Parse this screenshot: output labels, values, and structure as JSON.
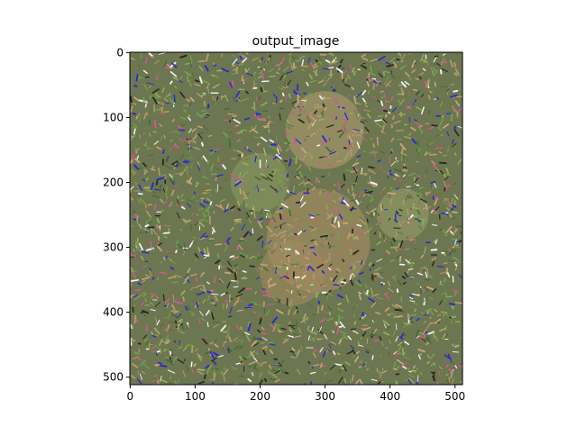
{
  "figure": {
    "title": "output_image",
    "x_ticks": [
      "0",
      "100",
      "200",
      "300",
      "400",
      "500"
    ],
    "y_ticks": [
      "0",
      "100",
      "200",
      "300",
      "400",
      "500"
    ],
    "image_width": 512,
    "image_height": 512,
    "image_description_colors": {
      "background_noise": "#6f7a4f",
      "green": "#6fa04a",
      "tan": "#b89a6a",
      "blue": "#2a2ad0",
      "white": "#f2f2f2",
      "dark": "#2a2a20"
    }
  }
}
